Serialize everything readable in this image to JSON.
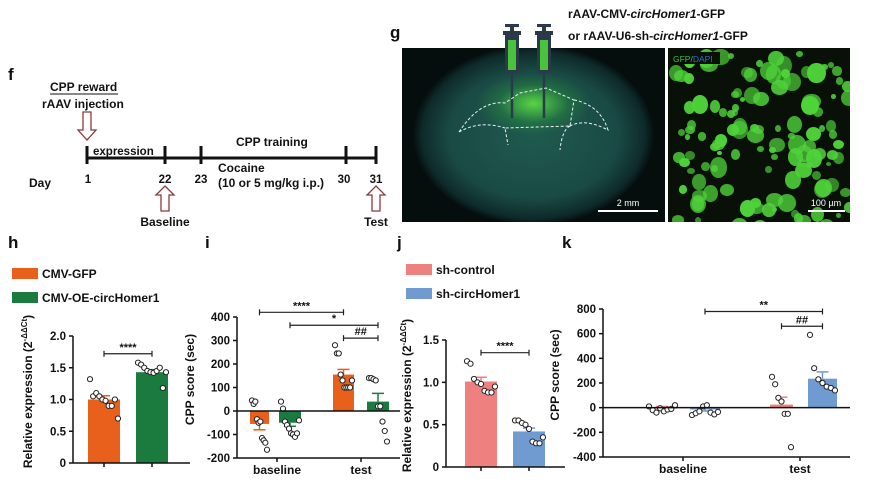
{
  "panels": {
    "f": {
      "letter": "f",
      "header_line1": "CPP reward",
      "header_line2": "rAAV injection",
      "expression_label": "expression",
      "training_label": "CPP training",
      "cocaine_line1": "Cocaine",
      "cocaine_line2": "(10 or 5 mg/kg i.p.)",
      "day_label": "Day",
      "days": [
        "1",
        "22",
        "23",
        "30",
        "31"
      ],
      "baseline_label": "Baseline",
      "test_label": "Test"
    },
    "g": {
      "letter": "g",
      "virus_line1": "rAAV-CMV-circHomer1-GFP",
      "virus_line2": "or rAAV-U6-sh-circHomer1-GFP",
      "stain_gfp": "GFP",
      "stain_sep": "/",
      "stain_dapi": "DAPI",
      "scale_left": "2 mm",
      "scale_right": "100 µm"
    }
  },
  "chart_data": [
    {
      "panel": "h",
      "type": "bar",
      "ylabel": "Relative expression (2",
      "ylabel_sup": "-ΔΔCt",
      "ylabel_end": ")",
      "ylim": [
        0,
        2.0
      ],
      "yticks": [
        "0",
        "0.5",
        "1.0",
        "1.5",
        "2.0"
      ],
      "ytick_values": [
        0,
        0.5,
        1.0,
        1.5,
        2.0
      ],
      "legend": [
        {
          "label": "CMV-GFP",
          "color": "#e8601c"
        },
        {
          "label": "CMV-OE-circHomer1",
          "color": "#1b7a3e"
        }
      ],
      "xlabels": [],
      "bars": [
        {
          "series": 0,
          "mean": 1.0,
          "sem": 0.06,
          "points": [
            1.32,
            1.05,
            1.1,
            1.05,
            1.0,
            0.98,
            0.9,
            0.9,
            1.0,
            0.7
          ]
        },
        {
          "series": 1,
          "mean": 1.43,
          "sem": 0.04,
          "points": [
            1.58,
            1.55,
            1.5,
            1.45,
            1.43,
            1.42,
            1.45,
            1.5,
            1.18,
            1.43
          ]
        }
      ],
      "significance": [
        {
          "from": 0,
          "to": 1,
          "label": "****",
          "at": 1.72
        }
      ]
    },
    {
      "panel": "i",
      "type": "bar",
      "ylabel": "CPP score (sec)",
      "ylim": [
        -200,
        400
      ],
      "yticks": [
        "-200",
        "-100",
        "0",
        "100",
        "200",
        "300",
        "400"
      ],
      "ytick_values": [
        -200,
        -100,
        0,
        100,
        200,
        300,
        400
      ],
      "xlabels": [
        "baseline",
        "test"
      ],
      "legend": [
        {
          "label": "CMV-GFP",
          "color": "#e8601c"
        },
        {
          "label": "CMV-OE-circHomer1",
          "color": "#1b7a3e"
        }
      ],
      "bars": [
        {
          "series": 0,
          "group": "baseline",
          "mean": -55,
          "sem": 25,
          "points": [
            45,
            30,
            40,
            -35,
            -50,
            -45,
            -115,
            -125,
            -135,
            -165
          ]
        },
        {
          "series": 1,
          "group": "baseline",
          "mean": -50,
          "sem": 15,
          "points": [
            40,
            10,
            -45,
            -60,
            -75,
            -95,
            -100,
            -110,
            -95,
            -40
          ]
        },
        {
          "series": 0,
          "group": "test",
          "mean": 155,
          "sem": 22,
          "points": [
            280,
            245,
            245,
            155,
            130,
            100,
            100,
            100,
            100,
            130
          ]
        },
        {
          "series": 1,
          "group": "test",
          "mean": 40,
          "sem": 35,
          "points": [
            140,
            140,
            135,
            130,
            20,
            20,
            -45,
            -85,
            -130
          ]
        }
      ],
      "significance": [
        {
          "from": 0,
          "to": 2,
          "label": "****",
          "at": 420
        },
        {
          "from": 1,
          "to": 3,
          "label": "*",
          "at": 365
        },
        {
          "from": 2,
          "to": 3,
          "label": "##",
          "at": 310
        }
      ]
    },
    {
      "panel": "j",
      "type": "bar",
      "ylabel": "Relative expression (2",
      "ylabel_sup": "-ΔΔCt",
      "ylabel_end": ")",
      "ylim": [
        0,
        1.5
      ],
      "yticks": [
        "0",
        "0.5",
        "1.0",
        "1.5"
      ],
      "ytick_values": [
        0,
        0.5,
        1.0,
        1.5
      ],
      "legend": [
        {
          "label": "sh-control",
          "color": "#ef8080"
        },
        {
          "label": "sh-circHomer1",
          "color": "#6f9bd1"
        }
      ],
      "xlabels": [],
      "bars": [
        {
          "series": 0,
          "mean": 1.01,
          "sem": 0.05,
          "points": [
            1.25,
            1.22,
            1.04,
            1.0,
            0.98,
            0.9,
            0.88,
            0.88,
            0.95
          ]
        },
        {
          "series": 1,
          "mean": 0.42,
          "sem": 0.04,
          "points": [
            0.55,
            0.55,
            0.52,
            0.5,
            0.45,
            0.3,
            0.28,
            0.28,
            0.35
          ]
        }
      ],
      "significance": [
        {
          "from": 0,
          "to": 1,
          "label": "****",
          "at": 1.35
        }
      ]
    },
    {
      "panel": "k",
      "type": "bar",
      "ylabel": "CPP score (sec)",
      "ylim": [
        -400,
        800
      ],
      "yticks": [
        "-400",
        "-200",
        "0",
        "200",
        "400",
        "600",
        "800"
      ],
      "ytick_values": [
        -400,
        -200,
        0,
        200,
        400,
        600,
        800
      ],
      "xlabels": [
        "baseline",
        "test"
      ],
      "legend": [
        {
          "label": "sh-control",
          "color": "#ef8080"
        },
        {
          "label": "sh-circHomer1",
          "color": "#6f9bd1"
        }
      ],
      "bars": [
        {
          "series": 0,
          "group": "baseline",
          "mean": 0,
          "sem": 10,
          "points": [
            10,
            -20,
            -40,
            -5,
            -30,
            -15,
            -10,
            20
          ]
        },
        {
          "series": 1,
          "group": "baseline",
          "mean": -15,
          "sem": 12,
          "points": [
            -60,
            -45,
            -30,
            10,
            20,
            -40,
            -55,
            -35
          ]
        },
        {
          "series": 0,
          "group": "test",
          "mean": 25,
          "sem": 60,
          "points": [
            250,
            190,
            80,
            50,
            -50,
            -50,
            -320
          ]
        },
        {
          "series": 1,
          "group": "test",
          "mean": 235,
          "sem": 55,
          "points": [
            590,
            320,
            230,
            200,
            170,
            160,
            140
          ]
        }
      ],
      "significance": [
        {
          "from": 1,
          "to": 3,
          "label": "**",
          "at": 780
        },
        {
          "from": 2,
          "to": 3,
          "label": "##",
          "at": 660
        }
      ]
    }
  ]
}
